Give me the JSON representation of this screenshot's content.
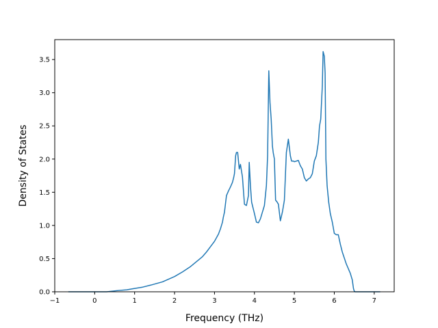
{
  "chart_data": {
    "type": "line",
    "title": "",
    "xlabel": "Frequency (THz)",
    "ylabel": "Density of States",
    "xlim": [
      -1.0,
      7.5
    ],
    "ylim": [
      0.0,
      3.8
    ],
    "grid": false,
    "x_ticks": [
      -1,
      0,
      1,
      2,
      3,
      4,
      5,
      6,
      7
    ],
    "y_ticks": [
      0.0,
      0.5,
      1.0,
      1.5,
      2.0,
      2.5,
      3.0,
      3.5
    ],
    "x_tick_labels": [
      "−1",
      "0",
      "1",
      "2",
      "3",
      "4",
      "5",
      "6",
      "7"
    ],
    "y_tick_labels": [
      "0.0",
      "0.5",
      "1.0",
      "1.5",
      "2.0",
      "2.5",
      "3.0",
      "3.5"
    ],
    "series": [
      {
        "color": "#1f77b4",
        "x": [
          -0.66,
          -0.3,
          0.0,
          0.3,
          0.6,
          0.8,
          1.0,
          1.2,
          1.4,
          1.7,
          2.0,
          2.2,
          2.4,
          2.6,
          2.7,
          2.8,
          2.9,
          3.0,
          3.1,
          3.15,
          3.2,
          3.22,
          3.25,
          3.3,
          3.35,
          3.4,
          3.45,
          3.48,
          3.5,
          3.53,
          3.55,
          3.58,
          3.62,
          3.65,
          3.7,
          3.75,
          3.8,
          3.85,
          3.87,
          3.9,
          3.93,
          4.0,
          4.05,
          4.1,
          4.15,
          4.2,
          4.25,
          4.3,
          4.33,
          4.36,
          4.39,
          4.42,
          4.45,
          4.47,
          4.5,
          4.53,
          4.56,
          4.6,
          4.65,
          4.7,
          4.75,
          4.8,
          4.85,
          4.87,
          4.9,
          4.93,
          4.98,
          5.0,
          5.1,
          5.15,
          5.2,
          5.25,
          5.3,
          5.35,
          5.4,
          5.45,
          5.5,
          5.55,
          5.6,
          5.63,
          5.66,
          5.7,
          5.72,
          5.75,
          5.77,
          5.79,
          5.82,
          5.86,
          5.9,
          5.95,
          6.0,
          6.05,
          6.1,
          6.15,
          6.2,
          6.3,
          6.4,
          6.45,
          6.48,
          6.5,
          6.52,
          6.55,
          6.6,
          7.0,
          7.15
        ],
        "y": [
          0.0,
          0.0,
          0.0,
          0.0,
          0.02,
          0.03,
          0.05,
          0.07,
          0.1,
          0.15,
          0.23,
          0.3,
          0.38,
          0.48,
          0.53,
          0.6,
          0.68,
          0.76,
          0.87,
          0.95,
          1.05,
          1.12,
          1.2,
          1.45,
          1.52,
          1.58,
          1.65,
          1.72,
          1.78,
          2.05,
          2.1,
          2.1,
          1.85,
          1.92,
          1.73,
          1.32,
          1.3,
          1.45,
          1.95,
          1.6,
          1.35,
          1.18,
          1.05,
          1.04,
          1.1,
          1.2,
          1.3,
          1.6,
          2.05,
          3.33,
          2.85,
          2.6,
          2.2,
          2.1,
          2.0,
          1.38,
          1.36,
          1.32,
          1.07,
          1.2,
          1.38,
          2.1,
          2.3,
          2.2,
          2.05,
          1.97,
          1.97,
          1.96,
          1.98,
          1.9,
          1.85,
          1.72,
          1.67,
          1.7,
          1.72,
          1.78,
          1.97,
          2.05,
          2.25,
          2.5,
          2.6,
          3.1,
          3.62,
          3.55,
          3.3,
          2.0,
          1.6,
          1.35,
          1.18,
          1.05,
          0.88,
          0.86,
          0.86,
          0.72,
          0.6,
          0.42,
          0.28,
          0.18,
          0.05,
          0.01,
          0.0,
          0.0,
          0.0,
          0.0,
          0.0
        ]
      }
    ]
  }
}
